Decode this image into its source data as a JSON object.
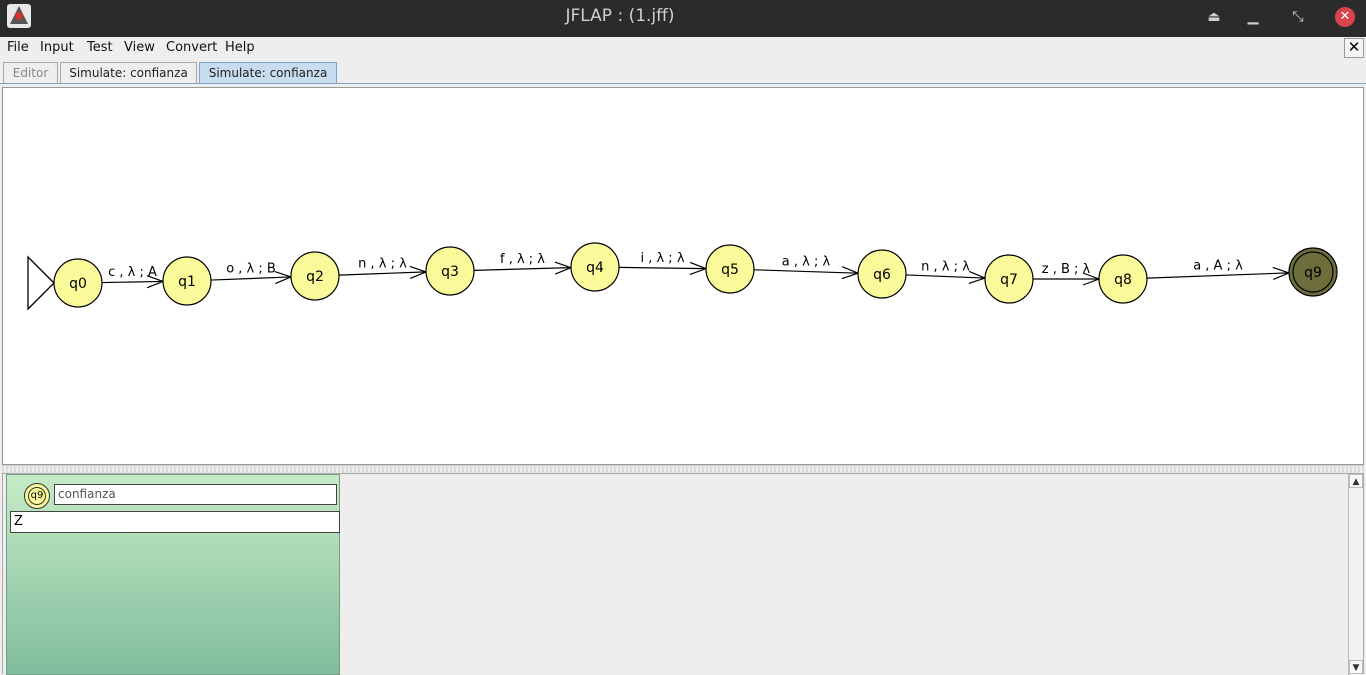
{
  "window": {
    "title": "JFLAP : (1.jff)",
    "minimize_glyph": "▁",
    "maximize_glyph": "⤡",
    "eject_glyph": "⏏",
    "close_glyph": "✕"
  },
  "menubar": {
    "items": [
      "File",
      "Input",
      "Test",
      "View",
      "Convert",
      "Help"
    ],
    "close_glyph": "✕"
  },
  "tabs": [
    {
      "label": "Editor",
      "state": "disabled"
    },
    {
      "label": "Simulate: confianza",
      "state": "normal"
    },
    {
      "label": "Simulate: confianza",
      "state": "selected"
    }
  ],
  "automaton": {
    "states": [
      "q0",
      "q1",
      "q2",
      "q3",
      "q4",
      "q5",
      "q6",
      "q7",
      "q8",
      "q9"
    ],
    "initial": "q0",
    "final": [
      "q9"
    ],
    "current": [
      "q9"
    ],
    "transitions": [
      {
        "from": "q0",
        "to": "q1",
        "label": "c , λ ; A"
      },
      {
        "from": "q1",
        "to": "q2",
        "label": "o , λ ; B"
      },
      {
        "from": "q2",
        "to": "q3",
        "label": "n , λ ; λ"
      },
      {
        "from": "q3",
        "to": "q4",
        "label": "f , λ ; λ"
      },
      {
        "from": "q4",
        "to": "q5",
        "label": "i , λ ; λ"
      },
      {
        "from": "q5",
        "to": "q6",
        "label": "a , λ ; λ"
      },
      {
        "from": "q6",
        "to": "q7",
        "label": "n , λ ; λ"
      },
      {
        "from": "q7",
        "to": "q8",
        "label": "z , B ; λ"
      },
      {
        "from": "q8",
        "to": "q9",
        "label": "a , A ; λ"
      }
    ],
    "colors": {
      "state_fill": "#fbfa9a",
      "current_fill": "#6e6e3c",
      "stroke": "#000000"
    }
  },
  "configuration": {
    "state": "q9",
    "input": "confianza",
    "stack": "Z"
  },
  "scrollbar": {
    "up_glyph": "▲",
    "down_glyph": "▼"
  }
}
